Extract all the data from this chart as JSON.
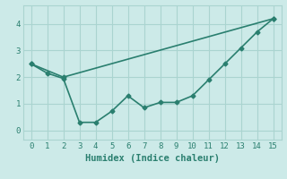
{
  "line1_x": [
    0,
    2,
    15
  ],
  "line1_y": [
    2.5,
    2.0,
    4.2
  ],
  "line2_x": [
    0,
    1,
    2,
    3,
    4,
    5,
    6,
    7,
    8,
    9,
    10,
    11,
    12,
    13,
    14,
    15
  ],
  "line2_y": [
    2.5,
    2.15,
    1.95,
    0.3,
    0.3,
    0.72,
    1.3,
    0.85,
    1.05,
    1.05,
    1.3,
    1.9,
    2.5,
    3.1,
    3.7,
    4.2
  ],
  "color": "#2a7f6f",
  "bg_color": "#cceae8",
  "grid_color": "#aad4d0",
  "xlabel": "Humidex (Indice chaleur)",
  "xlim": [
    -0.5,
    15.5
  ],
  "ylim": [
    -0.35,
    4.7
  ],
  "xticks": [
    0,
    1,
    2,
    3,
    4,
    5,
    6,
    7,
    8,
    9,
    10,
    11,
    12,
    13,
    14,
    15
  ],
  "yticks": [
    0,
    1,
    2,
    3,
    4
  ],
  "marker": "D",
  "markersize": 2.5,
  "linewidth": 1.2,
  "xlabel_fontsize": 7.5,
  "tick_fontsize": 6.5
}
